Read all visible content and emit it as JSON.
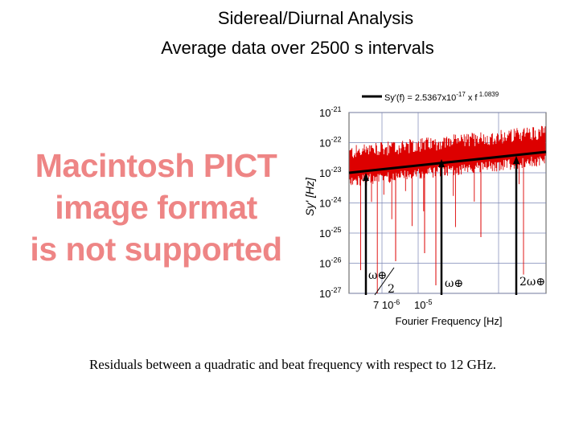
{
  "slide": {
    "title": "Sidereal/Diurnal Analysis",
    "subtitle": "Average data over 2500 s intervals",
    "caption": "Residuals between a quadratic and beat frequency with respect to 12 GHz.",
    "placeholder_lines": [
      "Macintosh PICT",
      "image format",
      "is not supported"
    ]
  },
  "chart_data": {
    "type": "line",
    "xlabel": "Fourier Frequency [Hz]",
    "ylabel": "Sy' [Hz]",
    "yscale": "log",
    "ylim": [
      1e-27,
      1e-21
    ],
    "ytick_labels": [
      "10-21",
      "10-22",
      "10-23",
      "10-24",
      "10-25",
      "10-26",
      "10-27"
    ],
    "xtick_labels": [
      "7 10-6",
      "10-5"
    ],
    "legend": {
      "position": "top",
      "text": "Sy'(f) = 2.5367x10-17 x f 1.0839"
    },
    "fit": {
      "coefficient": 2.5367e-17,
      "exponent": 1.0839
    },
    "grid": true,
    "series": [
      {
        "values_note": "",
        "color": "#dd0000"
      }
    ],
    "annotations": [
      {
        "label": "ω⊕/2"
      },
      {
        "label": "ω⊕"
      },
      {
        "label": "2ω⊕"
      }
    ],
    "colors": {
      "noise": "#dd0000",
      "fit": "#000000",
      "grid": "#7b86b5"
    }
  }
}
